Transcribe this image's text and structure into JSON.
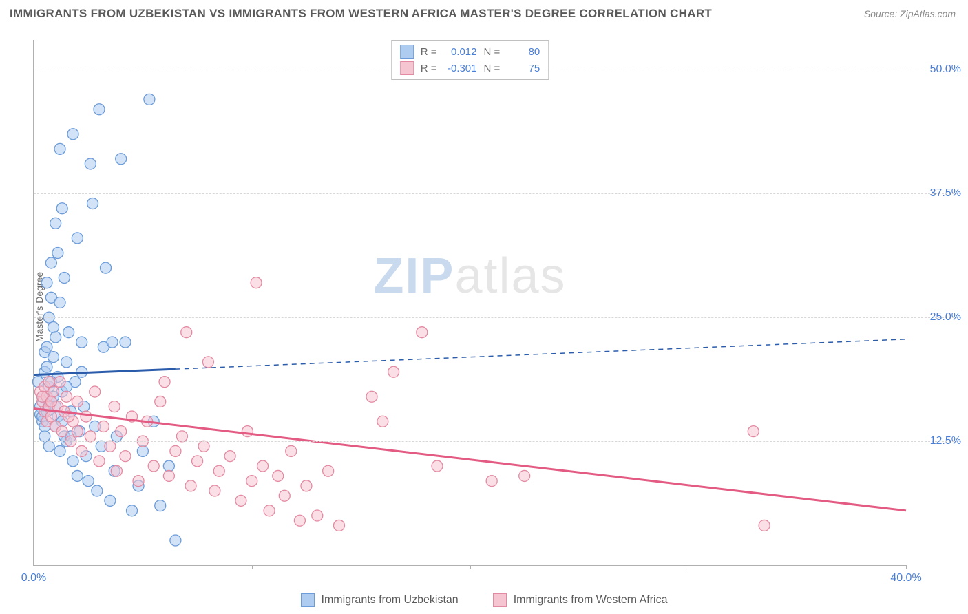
{
  "title": "IMMIGRANTS FROM UZBEKISTAN VS IMMIGRANTS FROM WESTERN AFRICA MASTER'S DEGREE CORRELATION CHART",
  "source": "Source: ZipAtlas.com",
  "ylabel": "Master's Degree",
  "watermark_zip": "ZIP",
  "watermark_atlas": "atlas",
  "chart": {
    "type": "scatter",
    "xlim": [
      0,
      40
    ],
    "ylim": [
      0,
      53
    ],
    "yticks": [
      12.5,
      25.0,
      37.5,
      50.0
    ],
    "ytick_labels": [
      "12.5%",
      "25.0%",
      "37.5%",
      "50.0%"
    ],
    "xticks": [
      0,
      10,
      20,
      30,
      40
    ],
    "xtick_labels": [
      "0.0%",
      "",
      "",
      "",
      "40.0%"
    ],
    "background_color": "#ffffff",
    "grid_color": "#d8d8d8",
    "axis_color": "#b0b0b0",
    "tick_label_color": "#4a7fd8",
    "marker_radius": 8,
    "marker_opacity": 0.55,
    "marker_stroke_width": 1.3,
    "series": [
      {
        "name": "Immigrants from Uzbekistan",
        "fill_color": "#aeccf0",
        "stroke_color": "#6b9bd8",
        "line_color": "#2a5cab",
        "R": "0.012",
        "N": "80",
        "trend": {
          "x1": 0,
          "y1": 19.2,
          "x2": 40,
          "y2": 22.8,
          "solid_until_x": 6.5
        },
        "points": [
          [
            0.2,
            18.5
          ],
          [
            0.3,
            16.0
          ],
          [
            0.3,
            15.2
          ],
          [
            0.4,
            17.0
          ],
          [
            0.4,
            14.5
          ],
          [
            0.5,
            21.5
          ],
          [
            0.5,
            19.5
          ],
          [
            0.5,
            13.0
          ],
          [
            0.6,
            28.5
          ],
          [
            0.6,
            22.0
          ],
          [
            0.6,
            20.0
          ],
          [
            0.7,
            25.0
          ],
          [
            0.7,
            18.0
          ],
          [
            0.7,
            12.0
          ],
          [
            0.8,
            30.5
          ],
          [
            0.8,
            27.0
          ],
          [
            0.8,
            16.5
          ],
          [
            0.9,
            24.0
          ],
          [
            0.9,
            21.0
          ],
          [
            1.0,
            34.5
          ],
          [
            1.0,
            23.0
          ],
          [
            1.0,
            14.0
          ],
          [
            1.1,
            31.5
          ],
          [
            1.1,
            19.0
          ],
          [
            1.2,
            42.0
          ],
          [
            1.2,
            26.5
          ],
          [
            1.2,
            11.5
          ],
          [
            1.3,
            36.0
          ],
          [
            1.3,
            17.5
          ],
          [
            1.4,
            29.0
          ],
          [
            1.5,
            20.5
          ],
          [
            1.5,
            12.5
          ],
          [
            1.6,
            23.5
          ],
          [
            1.7,
            15.5
          ],
          [
            1.8,
            43.5
          ],
          [
            1.8,
            10.5
          ],
          [
            1.9,
            18.5
          ],
          [
            2.0,
            33.0
          ],
          [
            2.0,
            9.0
          ],
          [
            2.1,
            13.5
          ],
          [
            2.2,
            22.5
          ],
          [
            2.3,
            16.0
          ],
          [
            2.4,
            11.0
          ],
          [
            2.5,
            8.5
          ],
          [
            2.6,
            40.5
          ],
          [
            2.7,
            36.5
          ],
          [
            2.8,
            14.0
          ],
          [
            2.9,
            7.5
          ],
          [
            3.0,
            46.0
          ],
          [
            3.1,
            12.0
          ],
          [
            3.2,
            22.0
          ],
          [
            3.3,
            30.0
          ],
          [
            3.5,
            6.5
          ],
          [
            3.6,
            22.5
          ],
          [
            3.7,
            9.5
          ],
          [
            3.8,
            13.0
          ],
          [
            4.0,
            41.0
          ],
          [
            4.2,
            22.5
          ],
          [
            4.5,
            5.5
          ],
          [
            4.8,
            8.0
          ],
          [
            5.0,
            11.5
          ],
          [
            5.3,
            47.0
          ],
          [
            5.5,
            14.5
          ],
          [
            5.8,
            6.0
          ],
          [
            6.2,
            10.0
          ],
          [
            6.5,
            2.5
          ],
          [
            0.4,
            15.0
          ],
          [
            0.5,
            14.0
          ],
          [
            0.6,
            15.5
          ],
          [
            0.6,
            17.0
          ],
          [
            0.7,
            16.0
          ],
          [
            0.8,
            18.5
          ],
          [
            0.9,
            17.0
          ],
          [
            1.0,
            16.0
          ],
          [
            1.1,
            15.0
          ],
          [
            1.3,
            14.5
          ],
          [
            1.4,
            13.0
          ],
          [
            1.5,
            18.0
          ],
          [
            1.7,
            13.0
          ],
          [
            2.2,
            19.5
          ]
        ]
      },
      {
        "name": "Immigrants from Western Africa",
        "fill_color": "#f5c5d1",
        "stroke_color": "#e38aa2",
        "line_color": "#e35a82",
        "R": "-0.301",
        "N": "75",
        "trend": {
          "x1": 0,
          "y1": 15.8,
          "x2": 40,
          "y2": 5.5,
          "solid_until_x": 40
        },
        "points": [
          [
            0.3,
            17.5
          ],
          [
            0.4,
            16.5
          ],
          [
            0.5,
            18.0
          ],
          [
            0.5,
            15.5
          ],
          [
            0.6,
            17.0
          ],
          [
            0.6,
            14.5
          ],
          [
            0.7,
            18.5
          ],
          [
            0.7,
            16.0
          ],
          [
            0.8,
            15.0
          ],
          [
            0.9,
            17.5
          ],
          [
            1.0,
            14.0
          ],
          [
            1.1,
            16.0
          ],
          [
            1.2,
            18.5
          ],
          [
            1.3,
            13.5
          ],
          [
            1.4,
            15.5
          ],
          [
            1.5,
            17.0
          ],
          [
            1.7,
            12.5
          ],
          [
            1.8,
            14.5
          ],
          [
            2.0,
            16.5
          ],
          [
            2.2,
            11.5
          ],
          [
            2.4,
            15.0
          ],
          [
            2.6,
            13.0
          ],
          [
            2.8,
            17.5
          ],
          [
            3.0,
            10.5
          ],
          [
            3.2,
            14.0
          ],
          [
            3.5,
            12.0
          ],
          [
            3.7,
            16.0
          ],
          [
            3.8,
            9.5
          ],
          [
            4.0,
            13.5
          ],
          [
            4.2,
            11.0
          ],
          [
            4.5,
            15.0
          ],
          [
            4.8,
            8.5
          ],
          [
            5.0,
            12.5
          ],
          [
            5.2,
            14.5
          ],
          [
            5.5,
            10.0
          ],
          [
            5.8,
            16.5
          ],
          [
            6.0,
            18.5
          ],
          [
            6.2,
            9.0
          ],
          [
            6.5,
            11.5
          ],
          [
            6.8,
            13.0
          ],
          [
            7.0,
            23.5
          ],
          [
            7.2,
            8.0
          ],
          [
            7.5,
            10.5
          ],
          [
            7.8,
            12.0
          ],
          [
            8.0,
            20.5
          ],
          [
            8.3,
            7.5
          ],
          [
            8.5,
            9.5
          ],
          [
            9.0,
            11.0
          ],
          [
            9.5,
            6.5
          ],
          [
            9.8,
            13.5
          ],
          [
            10.0,
            8.5
          ],
          [
            10.2,
            28.5
          ],
          [
            10.5,
            10.0
          ],
          [
            10.8,
            5.5
          ],
          [
            11.2,
            9.0
          ],
          [
            11.5,
            7.0
          ],
          [
            11.8,
            11.5
          ],
          [
            12.2,
            4.5
          ],
          [
            12.5,
            8.0
          ],
          [
            13.0,
            5.0
          ],
          [
            13.5,
            9.5
          ],
          [
            14.0,
            4.0
          ],
          [
            15.5,
            17.0
          ],
          [
            16.0,
            14.5
          ],
          [
            16.5,
            19.5
          ],
          [
            17.8,
            23.5
          ],
          [
            18.5,
            10.0
          ],
          [
            21.0,
            8.5
          ],
          [
            22.5,
            9.0
          ],
          [
            33.0,
            13.5
          ],
          [
            33.5,
            4.0
          ],
          [
            0.4,
            17.0
          ],
          [
            0.8,
            16.5
          ],
          [
            1.6,
            15.0
          ],
          [
            2.0,
            13.5
          ]
        ]
      }
    ]
  },
  "legend_top": {
    "r_label": "R =",
    "n_label": "N ="
  },
  "bottom_legend_label_a": "Immigrants from Uzbekistan",
  "bottom_legend_label_b": "Immigrants from Western Africa"
}
